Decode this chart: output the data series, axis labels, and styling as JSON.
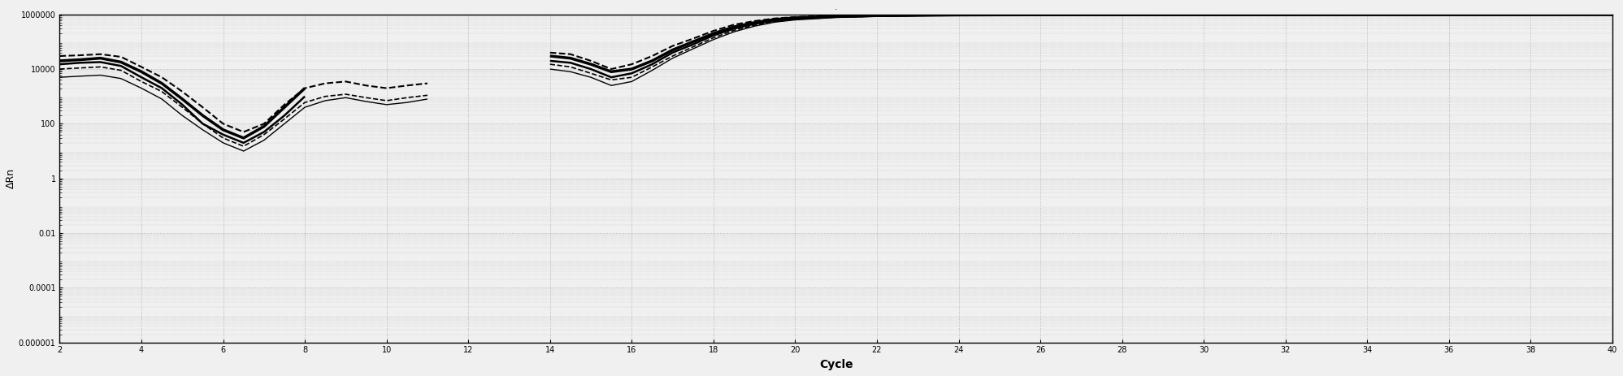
{
  "title": "·",
  "xlabel": "Cycle",
  "ylabel": "ΔRn",
  "xmin": 2,
  "xmax": 40,
  "xticks": [
    2,
    4,
    6,
    8,
    10,
    12,
    14,
    16,
    18,
    20,
    22,
    24,
    26,
    28,
    30,
    32,
    34,
    36,
    38,
    40
  ],
  "ymin": 1e-06,
  "ymax": 1000000.0,
  "yticks": [
    1e-06,
    0.0001,
    0.01,
    1,
    100.0,
    10000.0,
    1000000.0
  ],
  "ytick_labels": [
    "0.000001",
    "0.0001",
    "0.01",
    "1",
    "100",
    "10000",
    "1000000"
  ],
  "background_color": "#f0f0f0",
  "grid_color": "#aaaaaa",
  "line_color": "#000000",
  "series": [
    {
      "name": "s1_solid_thick",
      "x": [
        2,
        2.5,
        3,
        3.5,
        4,
        4.5,
        5,
        5.5,
        6,
        6.5,
        7,
        7.5,
        8
      ],
      "y": [
        20000,
        22000,
        25000,
        18000,
        8000,
        3000,
        800,
        200,
        60,
        30,
        80,
        400,
        2000
      ],
      "style": "-",
      "linewidth": 2.5
    },
    {
      "name": "s2_solid_medium",
      "x": [
        2,
        2.5,
        3,
        3.5,
        4,
        4.5,
        5,
        5.5,
        6,
        6.5,
        7,
        7.5,
        8
      ],
      "y": [
        15000,
        17000,
        18000,
        13000,
        5000,
        2000,
        500,
        100,
        40,
        20,
        50,
        200,
        1000
      ],
      "style": "-",
      "linewidth": 1.8
    },
    {
      "name": "s3_dashed",
      "x": [
        2,
        2.5,
        3,
        3.5,
        4,
        4.5,
        5,
        5.5,
        6,
        6.5,
        7,
        7.5,
        8,
        8.5,
        9,
        9.5,
        10,
        10.5,
        11
      ],
      "y": [
        30000,
        32000,
        35000,
        28000,
        12000,
        5000,
        1500,
        400,
        100,
        50,
        100,
        500,
        2000,
        3000,
        3500,
        2500,
        2000,
        2500,
        3000
      ],
      "style": "--",
      "linewidth": 1.5
    },
    {
      "name": "s4_dashed2",
      "x": [
        2,
        2.5,
        3,
        3.5,
        4,
        4.5,
        5,
        5.5,
        6,
        6.5,
        7,
        7.5,
        8,
        8.5,
        9,
        9.5,
        10,
        10.5,
        11
      ],
      "y": [
        10000,
        11000,
        12000,
        9000,
        3500,
        1500,
        400,
        100,
        30,
        15,
        40,
        150,
        600,
        1000,
        1200,
        900,
        700,
        900,
        1100
      ],
      "style": "--",
      "linewidth": 1.2
    },
    {
      "name": "s5_thin",
      "x": [
        2,
        2.5,
        3,
        3.5,
        4,
        4.5,
        5,
        5.5,
        6,
        6.5,
        7,
        7.5,
        8,
        8.5,
        9,
        9.5,
        10,
        10.5,
        11
      ],
      "y": [
        5000,
        5500,
        6000,
        4500,
        2000,
        800,
        200,
        60,
        20,
        10,
        25,
        100,
        400,
        700,
        900,
        650,
        500,
        600,
        800
      ],
      "style": "-",
      "linewidth": 1.0
    },
    {
      "name": "rise_s1",
      "x": [
        14,
        14.5,
        15,
        15.5,
        16,
        16.5,
        17,
        17.5,
        18,
        18.5,
        19,
        19.5,
        20,
        21,
        22,
        23,
        24,
        25,
        26,
        27,
        28,
        29,
        30,
        31,
        32,
        33,
        34,
        35,
        36,
        37,
        38,
        39,
        40
      ],
      "y": [
        30000,
        25000,
        15000,
        8000,
        10000,
        20000,
        50000,
        100000,
        200000,
        350000,
        500000,
        650000,
        750000,
        850000,
        900000,
        930000,
        950000,
        960000,
        965000,
        968000,
        970000,
        971000,
        972000,
        973000,
        974000,
        975000,
        975500,
        976000,
        976500,
        977000,
        977500,
        978000,
        978500
      ],
      "style": "-",
      "linewidth": 2.5
    },
    {
      "name": "rise_s2",
      "x": [
        14,
        14.5,
        15,
        15.5,
        16,
        16.5,
        17,
        17.5,
        18,
        18.5,
        19,
        19.5,
        20,
        21,
        22,
        23,
        24,
        25,
        26,
        27,
        28,
        29,
        30,
        31,
        32,
        33,
        34,
        35,
        36,
        37,
        38,
        39,
        40
      ],
      "y": [
        20000,
        17000,
        10000,
        5000,
        7000,
        15000,
        40000,
        80000,
        170000,
        300000,
        450000,
        600000,
        700000,
        820000,
        880000,
        915000,
        935000,
        945000,
        951000,
        955000,
        958000,
        960000,
        961000,
        962000,
        963000,
        963500,
        964000,
        964500,
        965000,
        965500,
        966000,
        966500,
        967000
      ],
      "style": "-",
      "linewidth": 1.8
    },
    {
      "name": "rise_s3",
      "x": [
        14,
        14.5,
        15,
        15.5,
        16,
        16.5,
        17,
        17.5,
        18,
        18.5,
        19,
        19.5,
        20,
        21,
        22,
        23,
        24,
        25,
        26,
        27,
        28,
        29,
        30,
        31,
        32,
        33,
        34,
        35,
        36,
        37,
        38,
        39,
        40
      ],
      "y": [
        40000,
        35000,
        20000,
        10000,
        15000,
        30000,
        70000,
        130000,
        250000,
        420000,
        570000,
        710000,
        800000,
        890000,
        930000,
        955000,
        968000,
        975000,
        979000,
        981500,
        983000,
        984000,
        984800,
        985400,
        985900,
        986300,
        986600,
        986800,
        987000,
        987200,
        987400,
        987500,
        987600
      ],
      "style": "--",
      "linewidth": 1.5
    },
    {
      "name": "rise_s4",
      "x": [
        14,
        14.5,
        15,
        15.5,
        16,
        16.5,
        17,
        17.5,
        18,
        18.5,
        19,
        19.5,
        20,
        21,
        22,
        23,
        24,
        25,
        26,
        27,
        28,
        29,
        30,
        31,
        32,
        33,
        34,
        35,
        36,
        37,
        38,
        39,
        40
      ],
      "y": [
        15000,
        12000,
        7000,
        4000,
        5000,
        12000,
        30000,
        65000,
        140000,
        260000,
        400000,
        550000,
        660000,
        790000,
        860000,
        900000,
        925000,
        938000,
        945000,
        950000,
        954000,
        957000,
        959000,
        960500,
        961500,
        962200,
        962700,
        963100,
        963400,
        963700,
        963900,
        964100,
        964200
      ],
      "style": "--",
      "linewidth": 1.2
    },
    {
      "name": "rise_s5",
      "x": [
        14,
        14.5,
        15,
        15.5,
        16,
        16.5,
        17,
        17.5,
        18,
        18.5,
        19,
        19.5,
        20,
        21,
        22,
        23,
        24,
        25,
        26,
        27,
        28,
        29,
        30,
        31,
        32,
        33,
        34,
        35,
        36,
        37,
        38,
        39,
        40
      ],
      "y": [
        10000,
        8000,
        5000,
        2500,
        3500,
        9000,
        25000,
        55000,
        120000,
        230000,
        370000,
        520000,
        630000,
        770000,
        845000,
        887000,
        912000,
        927000,
        936000,
        942000,
        947000,
        950000,
        952500,
        954000,
        955200,
        956000,
        956600,
        957100,
        957500,
        957800,
        958100,
        958300,
        958500
      ],
      "style": "-",
      "linewidth": 1.0
    }
  ]
}
